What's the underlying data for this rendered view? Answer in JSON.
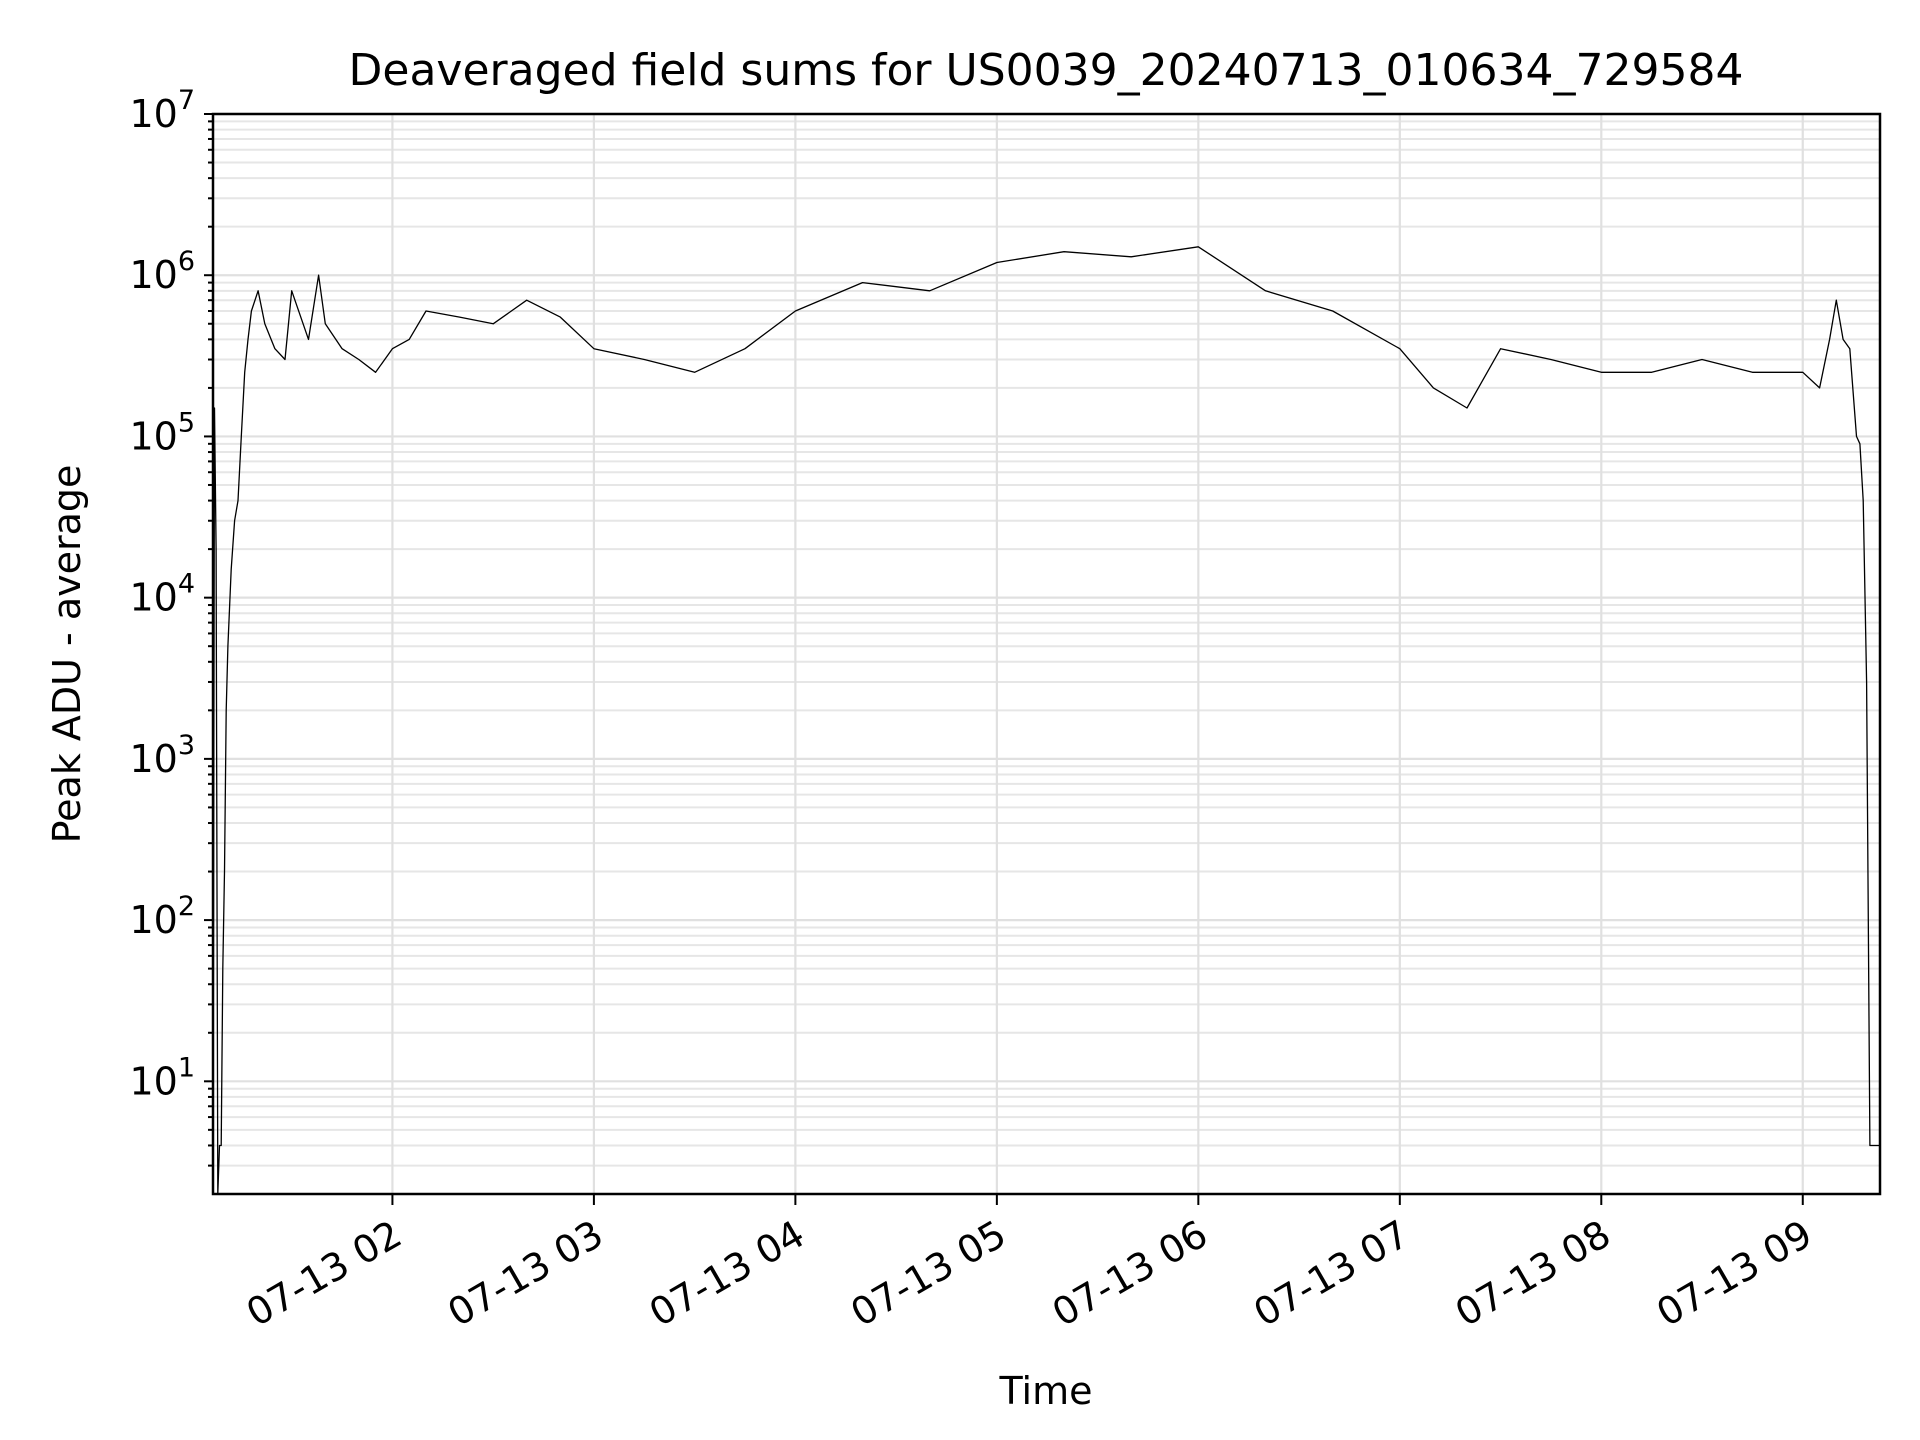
{
  "chart_data": {
    "type": "line",
    "title": "Deaveraged field sums for US0039_20240713_010634_729584",
    "xlabel": "Time",
    "ylabel": "Peak ADU - average",
    "yscale": "log",
    "grid": true,
    "grid_minor": true,
    "xlim": [
      "2024-07-13 01:06:34",
      "2024-07-13 09:23:00"
    ],
    "ylim": [
      2,
      10000000
    ],
    "x_ticks": [
      {
        "value": "2024-07-13 02:00",
        "label": "07-13 02"
      },
      {
        "value": "2024-07-13 03:00",
        "label": "07-13 03"
      },
      {
        "value": "2024-07-13 04:00",
        "label": "07-13 04"
      },
      {
        "value": "2024-07-13 05:00",
        "label": "07-13 05"
      },
      {
        "value": "2024-07-13 06:00",
        "label": "07-13 06"
      },
      {
        "value": "2024-07-13 07:00",
        "label": "07-13 07"
      },
      {
        "value": "2024-07-13 08:00",
        "label": "07-13 08"
      },
      {
        "value": "2024-07-13 09:00",
        "label": "07-13 09"
      }
    ],
    "y_ticks": [
      {
        "value": 10,
        "base": "10",
        "exp": "1"
      },
      {
        "value": 100,
        "base": "10",
        "exp": "2"
      },
      {
        "value": 1000,
        "base": "10",
        "exp": "3"
      },
      {
        "value": 10000,
        "base": "10",
        "exp": "4"
      },
      {
        "value": 100000,
        "base": "10",
        "exp": "5"
      },
      {
        "value": 1000000,
        "base": "10",
        "exp": "6"
      },
      {
        "value": 10000000,
        "base": "10",
        "exp": "7"
      }
    ],
    "series": [
      {
        "color": "#000000",
        "x": [
          "01:06:34",
          "01:07:00",
          "01:07:30",
          "01:08:00",
          "01:08:30",
          "01:09:00",
          "01:09:30",
          "01:10:00",
          "01:10:30",
          "01:11:00",
          "01:12:00",
          "01:13:00",
          "01:14:00",
          "01:15:00",
          "01:16:00",
          "01:17:00",
          "01:18:00",
          "01:20:00",
          "01:22:00",
          "01:25:00",
          "01:28:00",
          "01:30:00",
          "01:35:00",
          "01:38:00",
          "01:40:00",
          "01:45:00",
          "01:50:00",
          "01:55:00",
          "02:00:00",
          "02:05:00",
          "02:10:00",
          "02:20:00",
          "02:30:00",
          "02:40:00",
          "02:50:00",
          "03:00:00",
          "03:15:00",
          "03:30:00",
          "03:45:00",
          "04:00:00",
          "04:20:00",
          "04:40:00",
          "05:00:00",
          "05:20:00",
          "05:40:00",
          "06:00:00",
          "06:20:00",
          "06:40:00",
          "07:00:00",
          "07:10:00",
          "07:20:00",
          "07:30:00",
          "07:45:00",
          "08:00:00",
          "08:15:00",
          "08:30:00",
          "08:45:00",
          "09:00:00",
          "09:05:00",
          "09:08:00",
          "09:10:00",
          "09:12:00",
          "09:14:00",
          "09:16:00",
          "09:17:00",
          "09:18:00",
          "09:19:00",
          "09:20:00",
          "09:21:00",
          "09:22:00",
          "09:23:00"
        ],
        "y": [
          2,
          150000,
          20000,
          2,
          4,
          4,
          50,
          200,
          2000,
          5000,
          15000,
          30000,
          40000,
          100000,
          250000,
          400000,
          600000,
          800000,
          500000,
          350000,
          300000,
          800000,
          400000,
          1000000,
          500000,
          350000,
          300000,
          250000,
          350000,
          400000,
          600000,
          550000,
          500000,
          700000,
          550000,
          350000,
          300000,
          250000,
          350000,
          600000,
          900000,
          800000,
          1200000,
          1400000,
          1300000,
          1500000,
          800000,
          600000,
          350000,
          200000,
          150000,
          350000,
          300000,
          250000,
          250000,
          300000,
          250000,
          250000,
          200000,
          400000,
          700000,
          400000,
          350000,
          100000,
          90000,
          40000,
          3000,
          4,
          4,
          4,
          4
        ]
      }
    ]
  }
}
